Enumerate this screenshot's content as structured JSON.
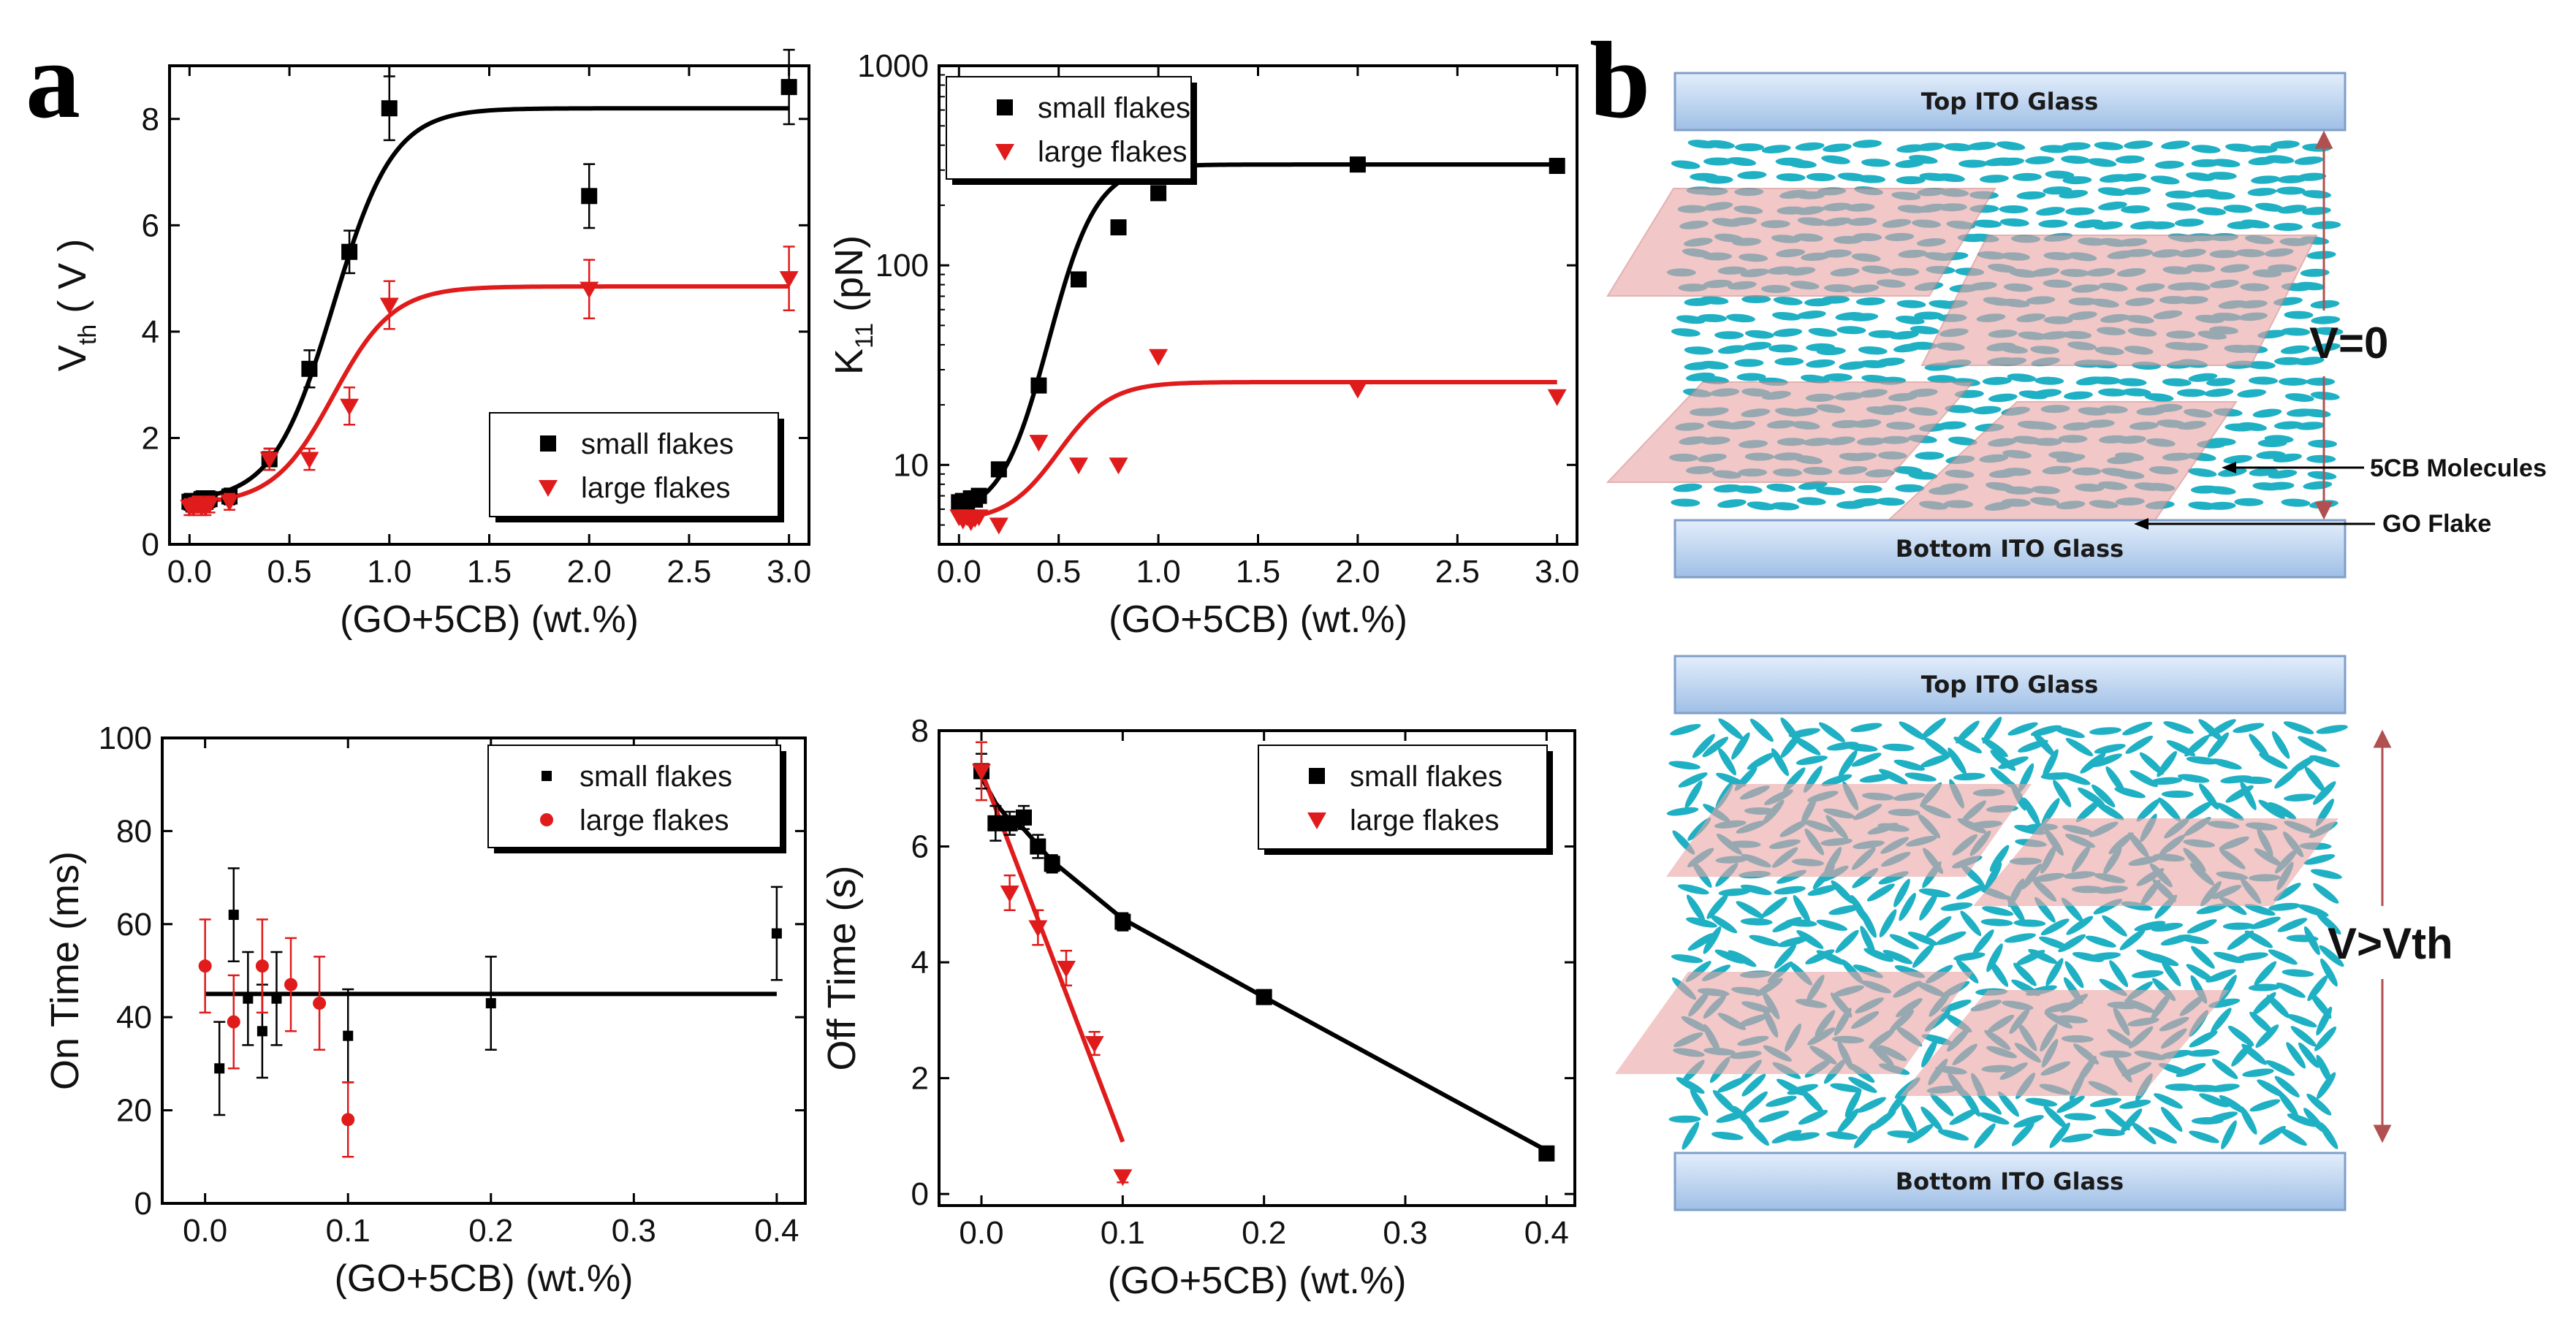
{
  "panel_labels": {
    "a": "a",
    "b": "b"
  },
  "colors": {
    "small": "#000000",
    "large": "#e01b1b",
    "molecule": "#1fb0c4",
    "flake": "#e9a3a3",
    "glass_top": "#cfe1f5",
    "glass_bottom": "#a9c6e8",
    "arrow": "#b05050"
  },
  "chart_data": [
    {
      "id": "vth",
      "type": "scatter",
      "ylabel_main": "V",
      "ylabel_sub": "th",
      "ylabel_rest": " ( V )",
      "xlabel": "(GO+5CB) (wt.%)",
      "xlim": [
        -0.1,
        3.1
      ],
      "ylim": [
        0,
        9
      ],
      "xticks": [
        0,
        0.5,
        1,
        1.5,
        2,
        2.5,
        3
      ],
      "xtick_labels": [
        "0.0",
        "0.5",
        "1.0",
        "1.5",
        "2.0",
        "2.5",
        "3.0"
      ],
      "yticks": [
        0,
        2,
        4,
        6,
        8
      ],
      "ytick_labels": [
        "0",
        "2",
        "4",
        "6",
        "8"
      ],
      "legend": [
        "small flakes",
        "large flakes"
      ],
      "series": [
        {
          "name": "small flakes",
          "marker": "square",
          "x": [
            0,
            0.02,
            0.04,
            0.06,
            0.08,
            0.1,
            0.2,
            0.4,
            0.6,
            0.8,
            1.0,
            2.0,
            3.0
          ],
          "y": [
            0.8,
            0.75,
            0.8,
            0.85,
            0.8,
            0.85,
            0.9,
            1.6,
            3.3,
            5.5,
            8.2,
            6.55,
            8.6
          ],
          "err": [
            0.15,
            0.15,
            0.15,
            0.15,
            0.15,
            0.15,
            0.15,
            0.2,
            0.35,
            0.4,
            0.6,
            0.6,
            0.7
          ]
        },
        {
          "name": "large flakes",
          "marker": "triangle",
          "x": [
            0,
            0.02,
            0.04,
            0.06,
            0.08,
            0.1,
            0.2,
            0.4,
            0.6,
            0.8,
            1.0,
            2.0,
            3.0
          ],
          "y": [
            0.7,
            0.7,
            0.75,
            0.7,
            0.7,
            0.75,
            0.8,
            1.6,
            1.6,
            2.6,
            4.5,
            4.8,
            5.0
          ],
          "err": [
            0.15,
            0.15,
            0.15,
            0.15,
            0.15,
            0.15,
            0.15,
            0.2,
            0.2,
            0.35,
            0.45,
            0.55,
            0.6
          ]
        }
      ],
      "fits": [
        {
          "name": "small flakes",
          "curve": "logistic",
          "base": 0.8,
          "top": 8.2,
          "x0": 0.72,
          "k": 0.15
        },
        {
          "name": "large flakes",
          "curve": "logistic",
          "base": 0.75,
          "top": 4.85,
          "x0": 0.72,
          "k": 0.15
        }
      ]
    },
    {
      "id": "k11",
      "type": "scatter",
      "yscale": "log",
      "ylabel_main": "K",
      "ylabel_sub": "11",
      "ylabel_rest": " (pN)",
      "xlabel": "(GO+5CB) (wt.%)",
      "xlim": [
        -0.1,
        3.1
      ],
      "ylim": [
        4,
        1000
      ],
      "xticks": [
        0,
        0.5,
        1,
        1.5,
        2,
        2.5,
        3
      ],
      "xtick_labels": [
        "0.0",
        "0.5",
        "1.0",
        "1.5",
        "2.0",
        "2.5",
        "3.0"
      ],
      "yticks": [
        10,
        100,
        1000
      ],
      "ytick_labels": [
        "10",
        "100",
        "1000"
      ],
      "legend": [
        "small flakes",
        "large flakes"
      ],
      "series": [
        {
          "name": "small flakes",
          "marker": "square",
          "x": [
            0,
            0.02,
            0.04,
            0.06,
            0.08,
            0.1,
            0.2,
            0.4,
            0.6,
            0.8,
            1.0,
            2.0,
            3.0
          ],
          "y": [
            6.5,
            6.6,
            6.5,
            6.8,
            6.7,
            7,
            9.5,
            25,
            85,
            155,
            230,
            320,
            315
          ]
        },
        {
          "name": "large flakes",
          "marker": "triangle",
          "x": [
            0,
            0.02,
            0.04,
            0.06,
            0.08,
            0.1,
            0.2,
            0.4,
            0.6,
            0.8,
            1.0,
            2.0,
            3.0
          ],
          "y": [
            5.5,
            5.3,
            5.5,
            5.2,
            5.4,
            5.5,
            5,
            13,
            10,
            10,
            35,
            24,
            22
          ]
        }
      ],
      "fits": [
        {
          "name": "small flakes",
          "curve": "log-logistic",
          "base": 5.5,
          "top": 320,
          "x0": 0.45,
          "k": 0.12
        },
        {
          "name": "large flakes",
          "curve": "log-logistic",
          "base": 5.2,
          "top": 26,
          "x0": 0.5,
          "k": 0.13
        }
      ]
    },
    {
      "id": "on",
      "type": "scatter",
      "ylabel": "On Time (ms)",
      "xlabel": "(GO+5CB) (wt.%)",
      "xlim": [
        -0.03,
        0.42
      ],
      "ylim": [
        0,
        100
      ],
      "xticks": [
        0,
        0.1,
        0.2,
        0.3,
        0.4
      ],
      "xtick_labels": [
        "0.0",
        "0.1",
        "0.2",
        "0.3",
        "0.4"
      ],
      "yticks": [
        0,
        20,
        40,
        60,
        80,
        100
      ],
      "ytick_labels": [
        "0",
        "20",
        "40",
        "60",
        "80",
        "100"
      ],
      "legend": [
        "small flakes",
        "large flakes"
      ],
      "series": [
        {
          "name": "small flakes",
          "marker": "square-small",
          "x": [
            0.01,
            0.02,
            0.03,
            0.04,
            0.05,
            0.1,
            0.2,
            0.4
          ],
          "y": [
            29,
            62,
            44,
            37,
            44,
            36,
            43,
            58
          ],
          "err": [
            10,
            10,
            10,
            10,
            10,
            10,
            10,
            10
          ]
        },
        {
          "name": "large flakes",
          "marker": "circle",
          "x": [
            0.0,
            0.02,
            0.04,
            0.06,
            0.08,
            0.1
          ],
          "y": [
            51,
            39,
            51,
            47,
            43,
            18
          ],
          "err": [
            10,
            10,
            10,
            10,
            10,
            8
          ]
        }
      ],
      "fits": [
        {
          "name": "mean",
          "curve": "hline",
          "y": 45,
          "x": [
            0,
            0.4
          ]
        }
      ]
    },
    {
      "id": "off",
      "type": "line",
      "ylabel": "Off Time (s)",
      "xlabel": "(GO+5CB) (wt.%)",
      "xlim": [
        -0.03,
        0.42
      ],
      "ylim": [
        -0.2,
        8
      ],
      "xticks": [
        0,
        0.1,
        0.2,
        0.3,
        0.4
      ],
      "xtick_labels": [
        "0.0",
        "0.1",
        "0.2",
        "0.3",
        "0.4"
      ],
      "yticks": [
        0,
        2,
        4,
        6,
        8
      ],
      "ytick_labels": [
        "0",
        "2",
        "4",
        "6",
        "8"
      ],
      "legend": [
        "small flakes",
        "large flakes"
      ],
      "series": [
        {
          "name": "small flakes",
          "marker": "square",
          "x": [
            0,
            0.01,
            0.02,
            0.03,
            0.04,
            0.05,
            0.1,
            0.2,
            0.4
          ],
          "y": [
            7.3,
            6.4,
            6.4,
            6.5,
            6.0,
            5.7,
            4.7,
            3.4,
            0.7
          ],
          "err": [
            0.3,
            0.3,
            0.2,
            0.2,
            0.2,
            0.15,
            0.15,
            0.1,
            0.1
          ]
        },
        {
          "name": "large flakes",
          "marker": "triangle",
          "x": [
            0,
            0.02,
            0.04,
            0.06,
            0.08,
            0.1
          ],
          "y": [
            7.3,
            5.2,
            4.6,
            3.9,
            2.6,
            0.3
          ],
          "err": [
            0.5,
            0.3,
            0.3,
            0.3,
            0.2,
            0.1
          ]
        }
      ],
      "fits": [
        {
          "name": "small flakes",
          "curve": "polyline",
          "x": [
            0,
            0.01,
            0.02,
            0.03,
            0.05,
            0.1,
            0.2,
            0.4
          ],
          "y": [
            7.2,
            6.75,
            6.45,
            6.3,
            5.75,
            4.75,
            3.4,
            0.75
          ]
        },
        {
          "name": "large flakes",
          "curve": "polyline",
          "x": [
            0,
            0.1
          ],
          "y": [
            7.3,
            0.9
          ]
        }
      ]
    }
  ],
  "diagram": {
    "top_glass_1": "Top ITO Glass",
    "bottom_glass_1": "Bottom ITO Glass",
    "top_glass_2": "Top ITO Glass",
    "bottom_glass_2": "Bottom ITO Glass",
    "v0_label": "V=0",
    "vth_label": "V>Vth",
    "molecules_label": "5CB Molecules",
    "flake_label": "GO Flake"
  }
}
